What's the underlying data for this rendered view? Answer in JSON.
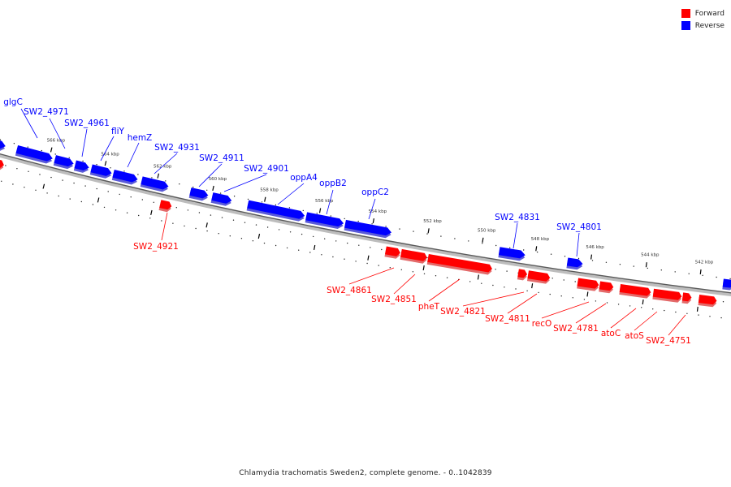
{
  "legend": [
    {
      "label": "Forward",
      "color": "#ff0000"
    },
    {
      "label": "Reverse",
      "color": "#0000ff"
    }
  ],
  "caption": "Chlamydia trachomatis Sweden2, complete genome. - 0..1042839",
  "ticks": [
    "566 kbp",
    "564 kbp",
    "562 kbp",
    "560 kbp",
    "558 kbp",
    "556 kbp",
    "554 kbp",
    "552 kbp",
    "550 kbp",
    "548 kbp",
    "546 kbp",
    "544 kbp",
    "542 kbp"
  ],
  "genes": {
    "reverse": [
      "glgC",
      "SW2_4971",
      "SW2_4961",
      "fliY",
      "hemZ",
      "SW2_4931",
      "SW2_4911",
      "SW2_4901",
      "oppA4",
      "oppB2",
      "oppC2",
      "SW2_4831",
      "SW2_4801"
    ],
    "forward": [
      "SW2_4921",
      "SW2_4861",
      "SW2_4851",
      "pheT",
      "SW2_4821",
      "SW2_4811",
      "recO",
      "SW2_4781",
      "atoC",
      "atoS",
      "SW2_4751"
    ]
  }
}
